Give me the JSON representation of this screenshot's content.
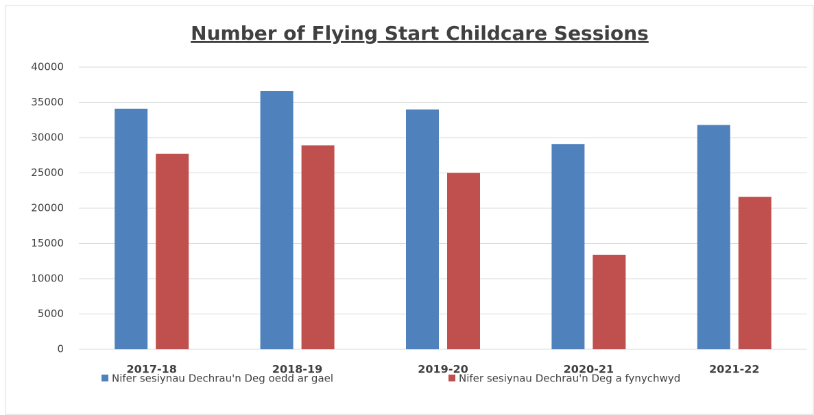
{
  "chart_data": {
    "type": "bar",
    "title": "Number of Flying Start Childcare Sessions",
    "categories": [
      "2017-18",
      "2018-19",
      "2019-20",
      "2020-21",
      "2021-22"
    ],
    "series": [
      {
        "name": "Nifer sesiynau Dechrau'n Deg oedd ar gael",
        "color": "#4f81bd",
        "values": [
          34100,
          36600,
          34000,
          29100,
          31800
        ]
      },
      {
        "name": "Nifer sesiynau Dechrau'n Deg a fynychwyd",
        "color": "#c0504d",
        "values": [
          27700,
          28900,
          25000,
          13400,
          21600
        ]
      }
    ],
    "ylim": [
      0,
      40000
    ],
    "yticks": [
      0,
      5000,
      10000,
      15000,
      20000,
      25000,
      30000,
      35000,
      40000
    ],
    "grid": true,
    "legend": "bottom"
  }
}
